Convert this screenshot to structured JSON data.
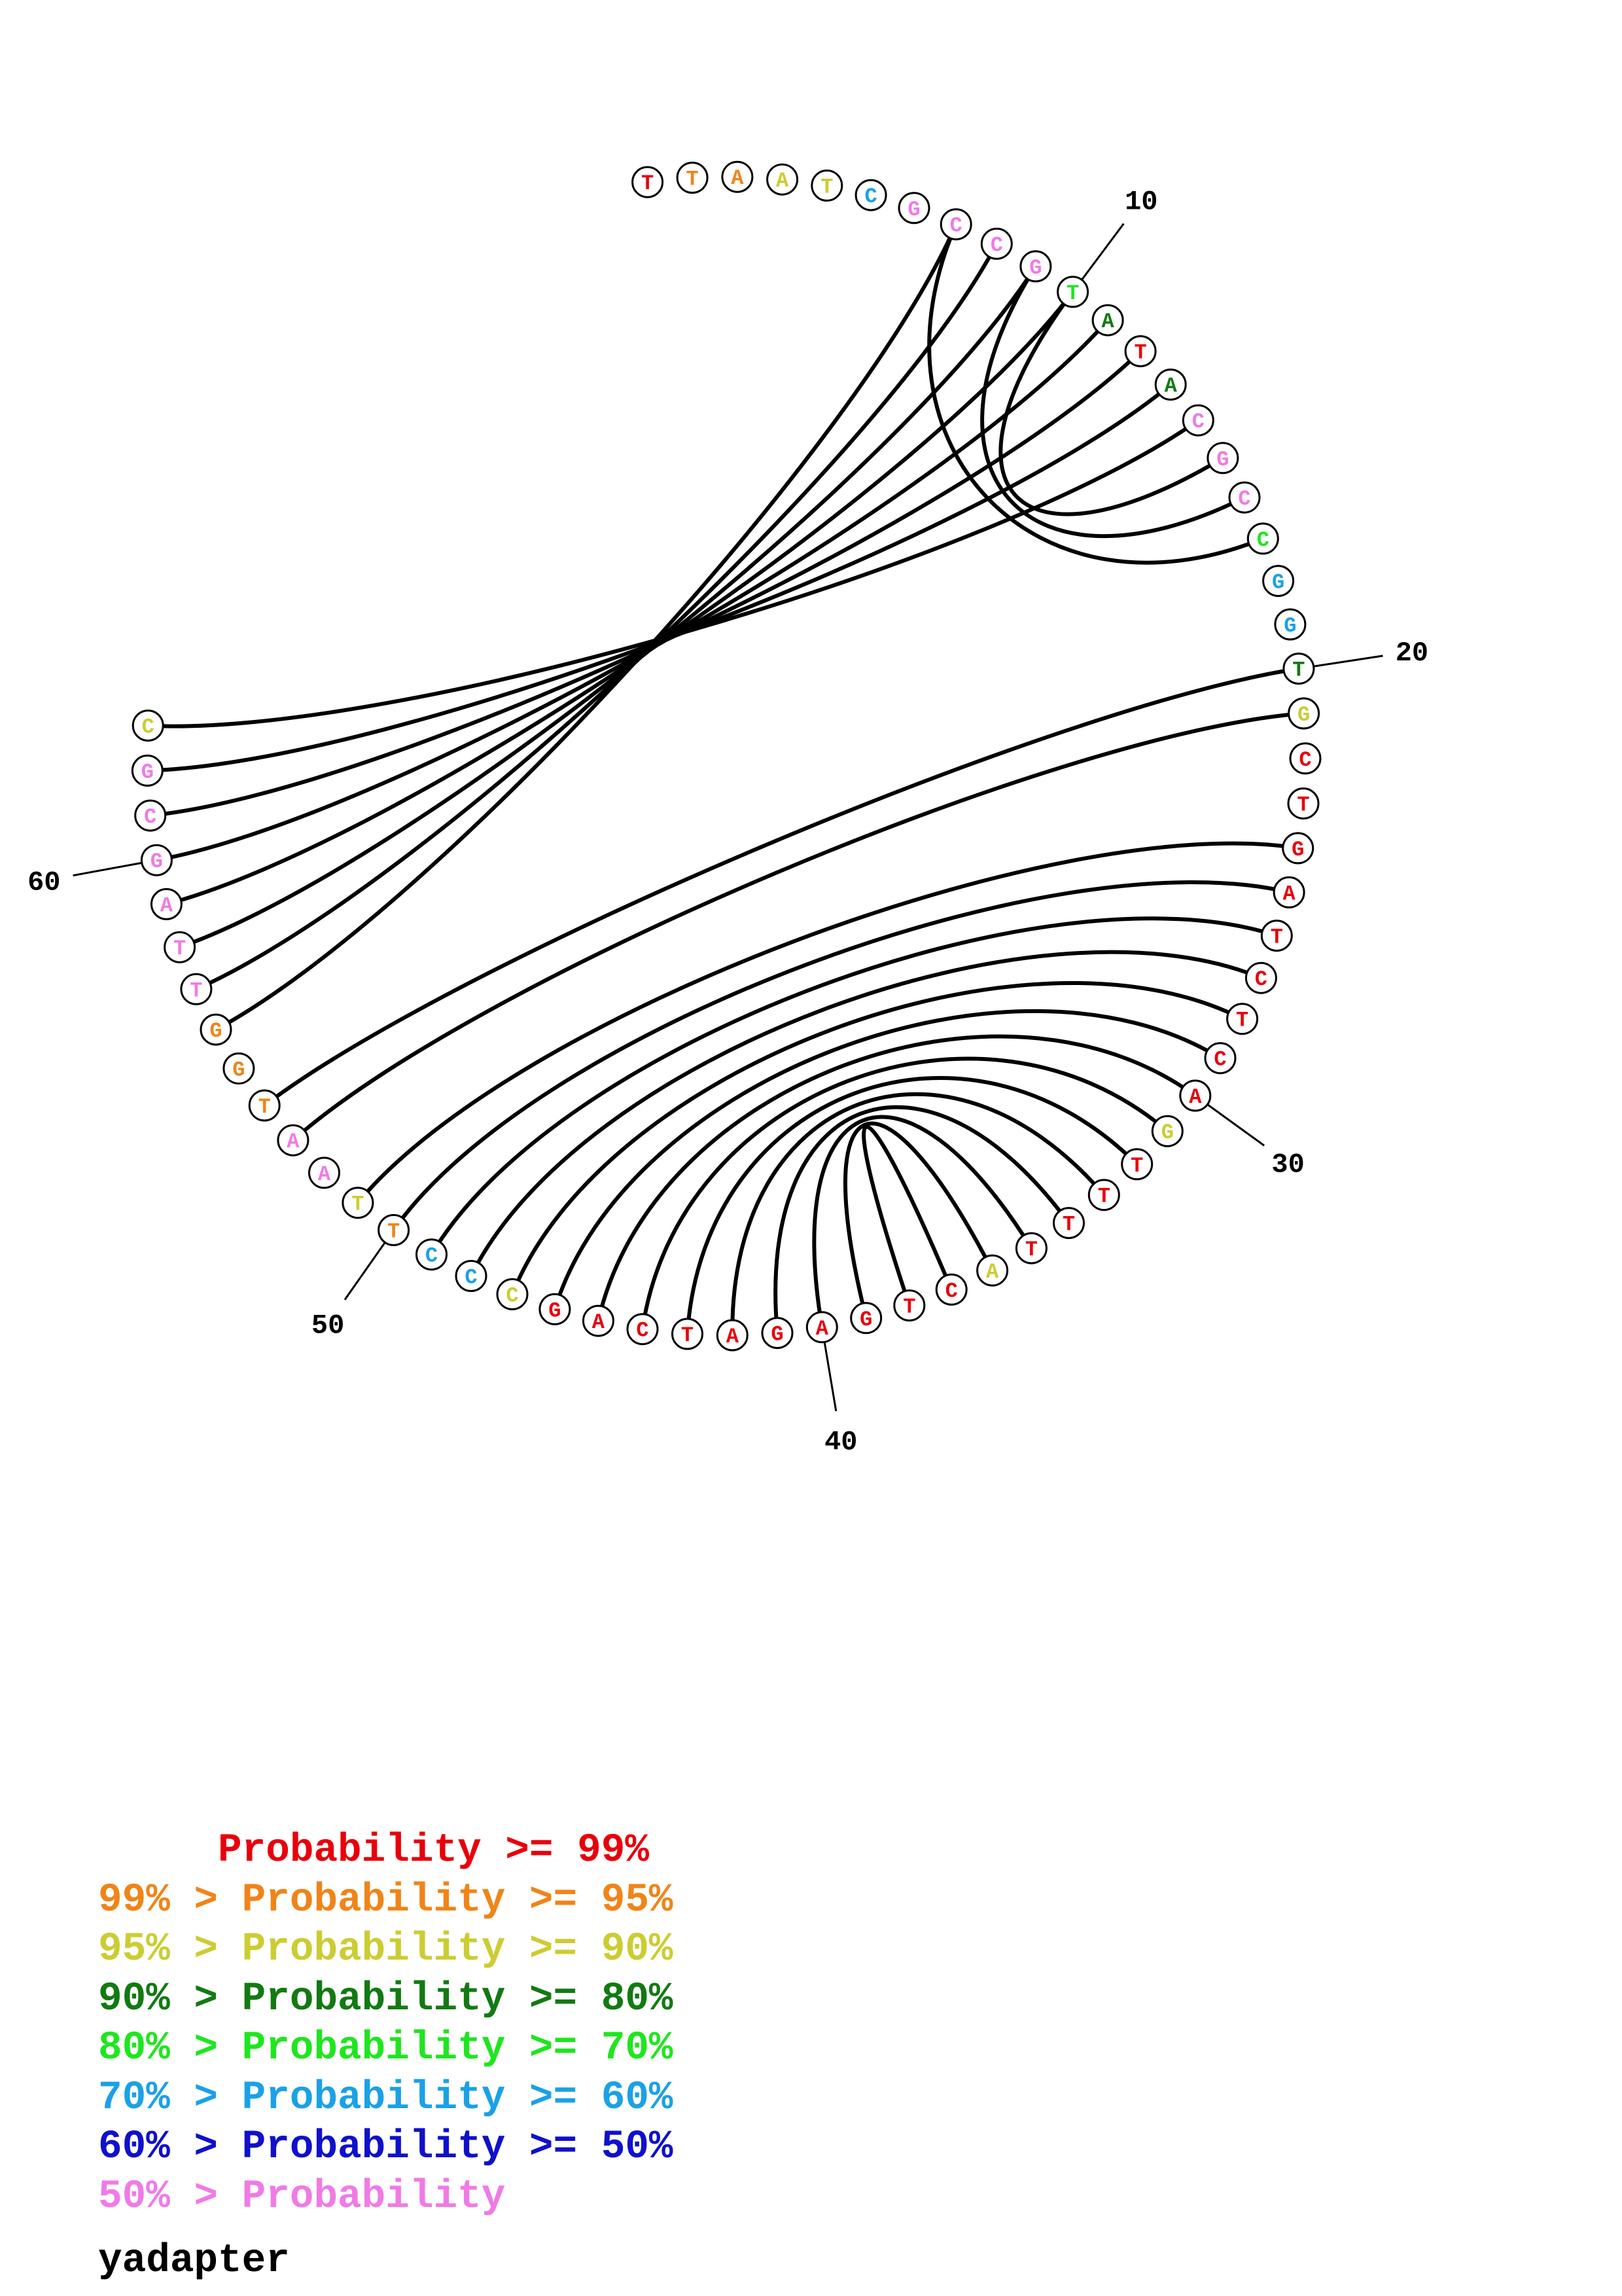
{
  "structure": {
    "sequence": [
      "T",
      "T",
      "A",
      "A",
      "T",
      "C",
      "G",
      "C",
      "C",
      "G",
      "T",
      "A",
      "T",
      "A",
      "C",
      "G",
      "C",
      "C",
      "G",
      "G",
      "T",
      "G",
      "C",
      "T",
      "G",
      "A",
      "T",
      "C",
      "T",
      "C",
      "A",
      "G",
      "T",
      "T",
      "T",
      "T",
      "A",
      "C",
      "T",
      "G",
      "A",
      "G",
      "A",
      "T",
      "C",
      "A",
      "G",
      "C",
      "C",
      "C",
      "T",
      "T",
      "A",
      "A",
      "T",
      "G",
      "G",
      "T",
      "T",
      "A",
      "G",
      "C",
      "G",
      "C"
    ],
    "confidence": [
      "r",
      "o",
      "o",
      "y",
      "y",
      "c",
      "p",
      "p",
      "p",
      "p",
      "l",
      "g",
      "r",
      "g",
      "p",
      "p",
      "p",
      "l",
      "c",
      "c",
      "g",
      "y",
      "r",
      "r",
      "r",
      "r",
      "r",
      "r",
      "r",
      "r",
      "r",
      "y",
      "r",
      "r",
      "r",
      "r",
      "y",
      "r",
      "r",
      "r",
      "r",
      "r",
      "r",
      "r",
      "r",
      "r",
      "r",
      "y",
      "c",
      "c",
      "o",
      "y",
      "p",
      "p",
      "o",
      "o",
      "o",
      "p",
      "p",
      "p",
      "p",
      "p",
      "p",
      "y"
    ],
    "pairs": [
      [
        7,
        56
      ],
      [
        8,
        57
      ],
      [
        9,
        58
      ],
      [
        10,
        59
      ],
      [
        11,
        60
      ],
      [
        12,
        61
      ],
      [
        13,
        62
      ],
      [
        14,
        63
      ],
      [
        10,
        15
      ],
      [
        9,
        16
      ],
      [
        7,
        17
      ],
      [
        20,
        54
      ],
      [
        21,
        53
      ],
      [
        24,
        51
      ],
      [
        25,
        50
      ],
      [
        26,
        49
      ],
      [
        27,
        48
      ],
      [
        28,
        47
      ],
      [
        29,
        46
      ],
      [
        30,
        45
      ],
      [
        31,
        44
      ],
      [
        32,
        43
      ],
      [
        33,
        42
      ],
      [
        34,
        41
      ],
      [
        35,
        40
      ],
      [
        36,
        39
      ],
      [
        37,
        38
      ]
    ],
    "position_labels": [
      {
        "index": 10,
        "label": "10"
      },
      {
        "index": 20,
        "label": "20"
      },
      {
        "index": 30,
        "label": "30"
      },
      {
        "index": 40,
        "label": "40"
      },
      {
        "index": 50,
        "label": "50"
      },
      {
        "index": 60,
        "label": "60"
      }
    ]
  },
  "confidence_colors": {
    "r": "#e8000b",
    "o": "#f08418",
    "y": "#cccc33",
    "g": "#127a12",
    "l": "#1ee61e",
    "c": "#1aa1e6",
    "b": "#1010cc",
    "p": "#f07ae6"
  },
  "legend": [
    {
      "text": "     Probability >= 99%",
      "color": "#e8000b"
    },
    {
      "text": "99% > Probability >= 95%",
      "color": "#f08418"
    },
    {
      "text": "95% > Probability >= 90%",
      "color": "#cccc33"
    },
    {
      "text": "90% > Probability >= 80%",
      "color": "#127a12"
    },
    {
      "text": "80% > Probability >= 70%",
      "color": "#1ee61e"
    },
    {
      "text": "70% > Probability >= 60%",
      "color": "#1aa1e6"
    },
    {
      "text": "60% > Probability >= 50%",
      "color": "#1010cc"
    },
    {
      "text": "50% > Probability",
      "color": "#f07ae6"
    }
  ],
  "title": "yadapter"
}
